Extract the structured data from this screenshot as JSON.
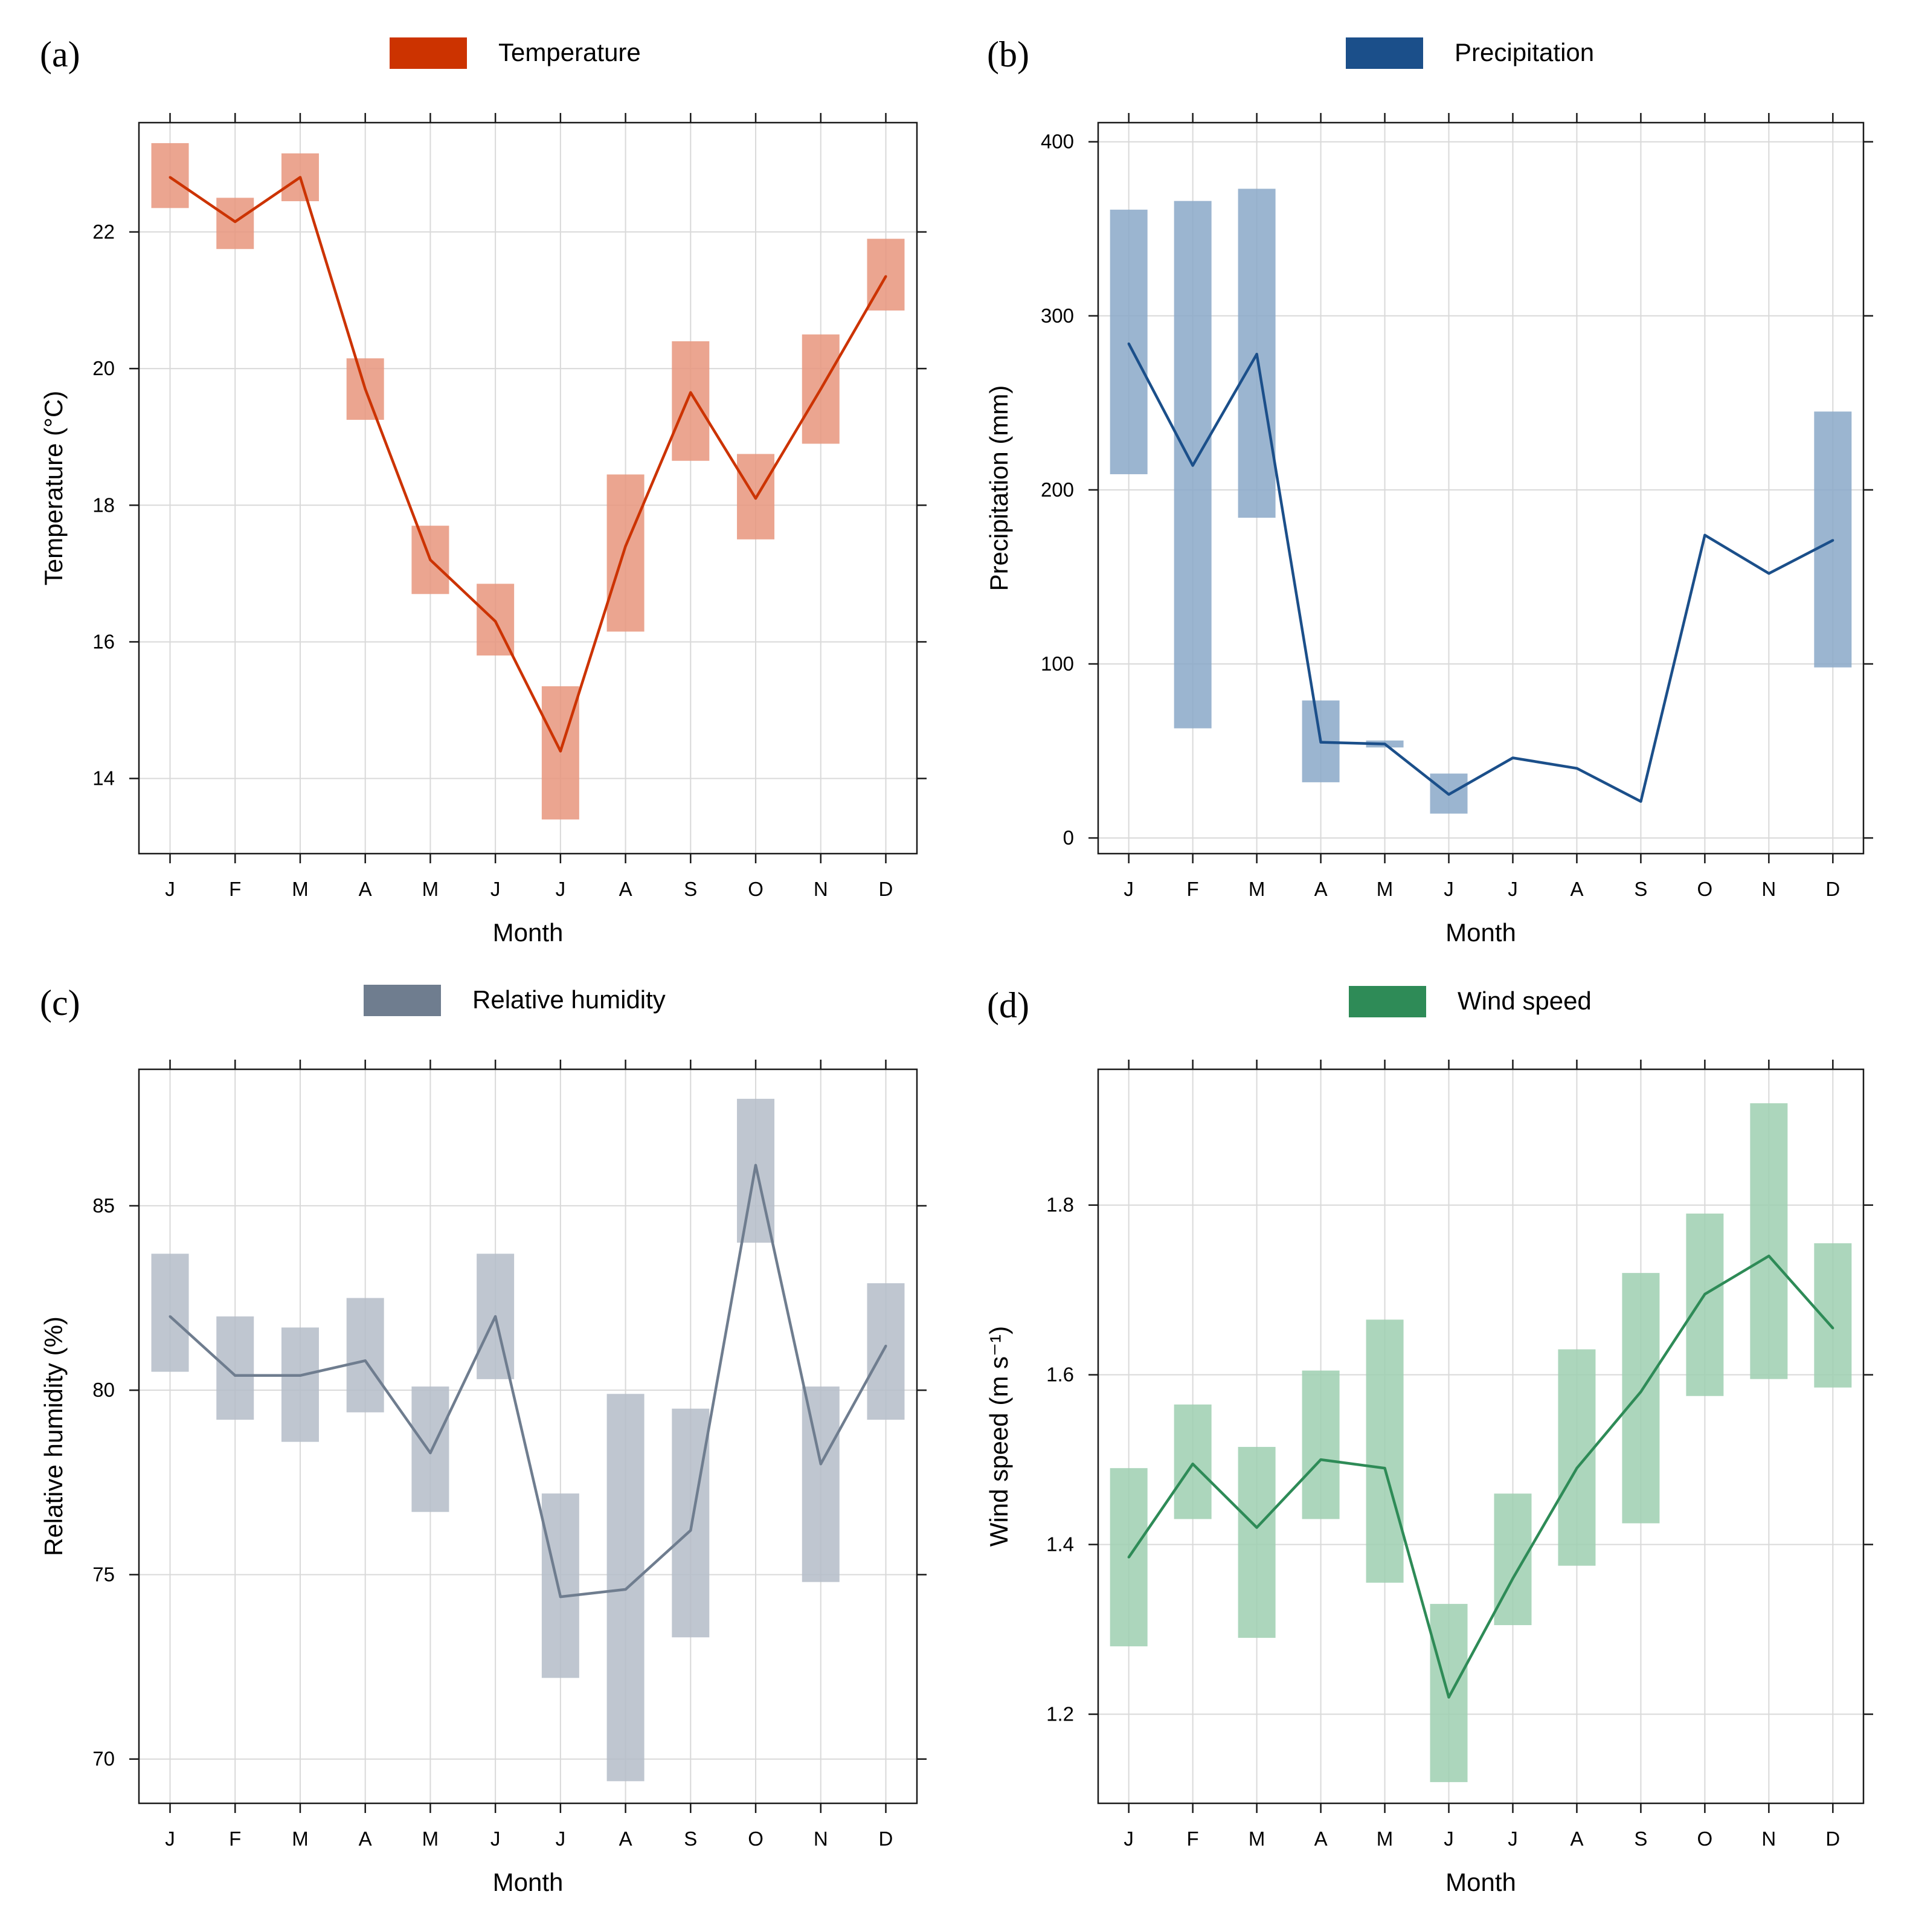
{
  "colors": {
    "grid": "#d9d9d9",
    "frame": "#1a1a1a"
  },
  "chart_data": [
    {
      "type": "line",
      "panel_label": "(a)",
      "legend_label": "Temperature",
      "color": "#cc3300",
      "band_color": "#e8957c",
      "xlabel": "Month",
      "ylabel": "Temperature (°C)",
      "categories": [
        "J",
        "F",
        "M",
        "A",
        "M",
        "J",
        "J",
        "A",
        "S",
        "O",
        "N",
        "D"
      ],
      "ylim": [
        12.9,
        23.6
      ],
      "yticks": [
        14,
        16,
        18,
        20,
        22
      ],
      "ytick_labels": [
        "14",
        "16",
        "18",
        "20",
        "22"
      ],
      "values": [
        22.8,
        22.15,
        22.8,
        19.7,
        17.2,
        16.3,
        14.4,
        17.4,
        19.65,
        18.1,
        19.7,
        21.35
      ],
      "band_low": [
        22.35,
        21.75,
        22.45,
        19.25,
        16.7,
        15.8,
        13.4,
        16.15,
        18.65,
        17.5,
        18.9,
        20.85
      ],
      "band_high": [
        23.3,
        22.5,
        23.15,
        20.15,
        17.7,
        16.85,
        15.35,
        18.45,
        20.4,
        18.75,
        20.5,
        21.9
      ]
    },
    {
      "type": "line",
      "panel_label": "(b)",
      "legend_label": "Precipitation",
      "color": "#1b4f8a",
      "band_color": "#8aa8c8",
      "xlabel": "Month",
      "ylabel": "Precipitation (mm)",
      "categories": [
        "J",
        "F",
        "M",
        "A",
        "M",
        "J",
        "J",
        "A",
        "S",
        "O",
        "N",
        "D"
      ],
      "ylim": [
        -9,
        411
      ],
      "yticks": [
        0,
        100,
        200,
        300,
        400
      ],
      "ytick_labels": [
        "0",
        "100",
        "200",
        "300",
        "400"
      ],
      "values": [
        284,
        214,
        278,
        55,
        54,
        25,
        46,
        40,
        21,
        174,
        152,
        171
      ],
      "band_low": [
        209,
        63,
        184,
        32,
        52,
        14,
        null,
        null,
        null,
        null,
        null,
        98
      ],
      "band_high": [
        361,
        366,
        373,
        79,
        56,
        37,
        null,
        null,
        null,
        null,
        null,
        245
      ]
    },
    {
      "type": "line",
      "panel_label": "(c)",
      "legend_label": "Relative humidity",
      "color": "#6f7d8f",
      "band_color": "#b4bcc8",
      "xlabel": "Month",
      "ylabel": "Relative humidity (%)",
      "categories": [
        "J",
        "F",
        "M",
        "A",
        "M",
        "J",
        "J",
        "A",
        "S",
        "O",
        "N",
        "D"
      ],
      "ylim": [
        68.8,
        88.7
      ],
      "yticks": [
        70,
        75,
        80,
        85
      ],
      "ytick_labels": [
        "70",
        "75",
        "80",
        "85"
      ],
      "values": [
        82.0,
        80.4,
        80.4,
        80.8,
        78.3,
        82.0,
        74.4,
        74.6,
        76.2,
        86.1,
        78.0,
        81.2
      ],
      "band_low": [
        80.5,
        79.2,
        78.6,
        79.4,
        76.7,
        80.3,
        72.2,
        69.4,
        73.3,
        84.0,
        74.8,
        79.2
      ],
      "band_high": [
        83.7,
        82.0,
        81.7,
        82.5,
        80.1,
        83.7,
        77.2,
        79.9,
        79.5,
        87.9,
        80.1,
        82.9
      ]
    },
    {
      "type": "line",
      "panel_label": "(d)",
      "legend_label": "Wind speed",
      "color": "#2e8b57",
      "band_color": "#9dcfb0",
      "xlabel": "Month",
      "ylabel": "Wind speed (m s⁻¹)",
      "categories": [
        "J",
        "F",
        "M",
        "A",
        "M",
        "J",
        "J",
        "A",
        "S",
        "O",
        "N",
        "D"
      ],
      "ylim": [
        1.095,
        1.96
      ],
      "yticks": [
        1.2,
        1.4,
        1.6,
        1.8
      ],
      "ytick_labels": [
        "1.2",
        "1.4",
        "1.6",
        "1.8"
      ],
      "values": [
        1.385,
        1.495,
        1.42,
        1.5,
        1.49,
        1.22,
        1.36,
        1.49,
        1.58,
        1.695,
        1.74,
        1.655
      ],
      "band_low": [
        1.28,
        1.43,
        1.29,
        1.43,
        1.355,
        1.12,
        1.305,
        1.375,
        1.425,
        1.575,
        1.595,
        1.585
      ],
      "band_high": [
        1.49,
        1.565,
        1.515,
        1.605,
        1.665,
        1.33,
        1.46,
        1.63,
        1.72,
        1.79,
        1.92,
        1.755
      ]
    }
  ]
}
